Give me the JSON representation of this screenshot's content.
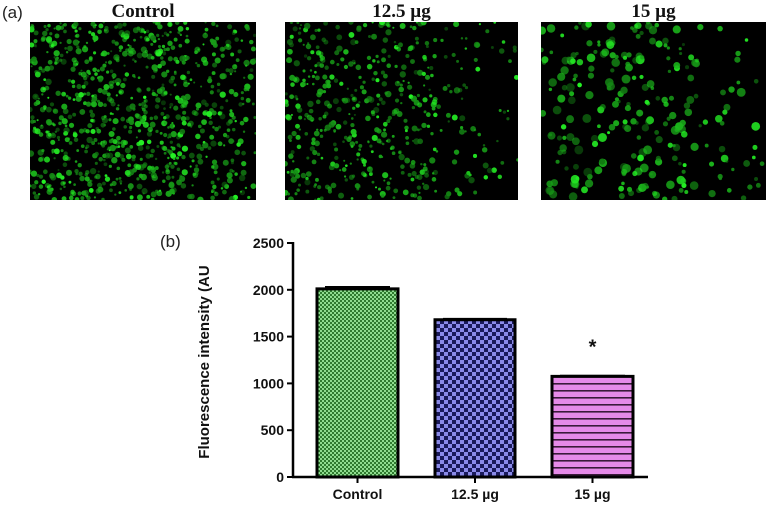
{
  "figure": {
    "panel_a_label": "(a)",
    "panel_b_label": "(b)",
    "micrographs": [
      {
        "title": "Control",
        "intensity": "high"
      },
      {
        "title": "12.5 µg",
        "intensity": "medium"
      },
      {
        "title": "15 µg",
        "intensity": "low"
      }
    ],
    "fluorescence_color": "#22cc22"
  },
  "chart_data": {
    "type": "bar",
    "title": "",
    "xlabel": "",
    "ylabel": "Fluorescence intensity (AU",
    "categories": [
      "Control",
      "12.5 µg",
      "15 µg"
    ],
    "values": [
      2010,
      1680,
      1075
    ],
    "error_upper": [
      2030,
      1690,
      1082
    ],
    "annotations": [
      "",
      "",
      "*"
    ],
    "ylim": [
      0,
      2500
    ],
    "yticks": [
      0,
      500,
      1000,
      1500,
      2000,
      2500
    ],
    "grid": false,
    "bar_colors": [
      "#8fdc8f",
      "#8a8ae8",
      "#e58ae8"
    ],
    "bar_patterns": [
      "fine-checker",
      "checker",
      "horizontal-stripes"
    ]
  }
}
